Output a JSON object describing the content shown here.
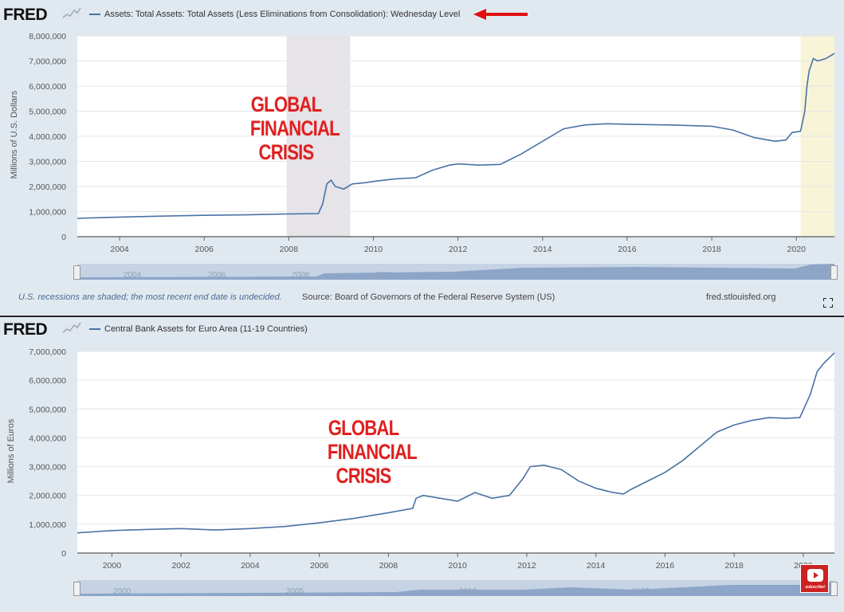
{
  "chart1": {
    "logo": "FRED",
    "legend": "Assets: Total Assets: Total Assets (Less Eliminations from Consolidation): Wednesday Level",
    "ylabel": "Millions of U.S. Dollars",
    "annotation": [
      "GLOBAL",
      "FINANCIAL",
      "CRISIS"
    ],
    "footer_note": "U.S. recessions are shaded; the most recent end date is undecided.",
    "source": "Source: Board of Governors of the Federal Reserve System (US)",
    "site": "fred.stlouisfed.org",
    "navigator_labels": [
      "2004",
      "2006",
      "2008",
      "2010",
      "2012"
    ],
    "colors": {
      "line": "#4a72a5",
      "recession": "#e6e3e9",
      "recent": "#f7f4d8",
      "arrow": "#e01010",
      "annotation": "#e02020"
    }
  },
  "chart2": {
    "logo": "FRED",
    "legend": "Central Bank Assets for Euro Area (11-19 Countries)",
    "ylabel": "Millions of Euros",
    "annotation": [
      "GLOBAL",
      "FINANCIAL",
      "CRISIS"
    ],
    "navigator_labels": [
      "2000",
      "2005",
      "2010",
      "2015"
    ],
    "subscribe": "subscribe!",
    "subscribe_icon": "youtube-icon"
  },
  "chart_data": [
    {
      "type": "line",
      "title": "Assets: Total Assets: Total Assets (Less Eliminations from Consolidation): Wednesday Level",
      "xlabel": "",
      "ylabel": "Millions of U.S. Dollars",
      "xlim": [
        2003.0,
        2020.9
      ],
      "ylim": [
        0,
        8000000
      ],
      "xticks": [
        2004,
        2006,
        2008,
        2010,
        2012,
        2014,
        2016,
        2018,
        2020
      ],
      "yticks": [
        0,
        1000000,
        2000000,
        3000000,
        4000000,
        5000000,
        6000000,
        7000000,
        8000000
      ],
      "ytick_labels": [
        "0",
        "1,000,000",
        "2,000,000",
        "3,000,000",
        "4,000,000",
        "5,000,000",
        "6,000,000",
        "7,000,000",
        "8,000,000"
      ],
      "shaded_regions": [
        {
          "from": 2007.95,
          "to": 2009.45,
          "kind": "recession"
        },
        {
          "from": 2020.1,
          "to": 2020.9,
          "kind": "recession"
        }
      ],
      "series": [
        {
          "x": [
            2003.0,
            2004.0,
            2005.0,
            2006.0,
            2007.0,
            2007.9,
            2008.7,
            2008.8,
            2008.9,
            2009.0,
            2009.1,
            2009.3,
            2009.5,
            2009.8,
            2010.0,
            2010.5,
            2011.0,
            2011.4,
            2011.8,
            2012.0,
            2012.5,
            2013.0,
            2013.5,
            2014.0,
            2014.5,
            2015.0,
            2015.5,
            2016.0,
            2017.0,
            2018.0,
            2018.5,
            2019.0,
            2019.5,
            2019.75,
            2019.9,
            2020.1,
            2020.2,
            2020.25,
            2020.3,
            2020.4,
            2020.5,
            2020.7,
            2020.9
          ],
          "values": [
            730000,
            780000,
            820000,
            850000,
            870000,
            900000,
            920000,
            1300000,
            2100000,
            2250000,
            2000000,
            1900000,
            2100000,
            2150000,
            2200000,
            2300000,
            2350000,
            2650000,
            2850000,
            2900000,
            2850000,
            2880000,
            3300000,
            3800000,
            4300000,
            4450000,
            4500000,
            4480000,
            4450000,
            4400000,
            4250000,
            3950000,
            3800000,
            3850000,
            4150000,
            4200000,
            5000000,
            6000000,
            6600000,
            7100000,
            7000000,
            7100000,
            7300000
          ]
        }
      ]
    },
    {
      "type": "line",
      "title": "Central Bank Assets for Euro Area (11-19 Countries)",
      "xlabel": "",
      "ylabel": "Millions of Euros",
      "xlim": [
        1999.0,
        2020.9
      ],
      "ylim": [
        0,
        7000000
      ],
      "xticks": [
        2000,
        2002,
        2004,
        2006,
        2008,
        2010,
        2012,
        2014,
        2016,
        2018,
        2020
      ],
      "yticks": [
        0,
        1000000,
        2000000,
        3000000,
        4000000,
        5000000,
        6000000,
        7000000
      ],
      "ytick_labels": [
        "0",
        "1,000,000",
        "2,000,000",
        "3,000,000",
        "4,000,000",
        "5,000,000",
        "6,000,000",
        "7,000,000"
      ],
      "series": [
        {
          "x": [
            1999.0,
            2000.0,
            2001.0,
            2002.0,
            2003.0,
            2004.0,
            2005.0,
            2006.0,
            2007.0,
            2008.0,
            2008.7,
            2008.8,
            2009.0,
            2009.5,
            2010.0,
            2010.5,
            2011.0,
            2011.5,
            2011.9,
            2012.1,
            2012.5,
            2013.0,
            2013.5,
            2014.0,
            2014.5,
            2014.8,
            2015.0,
            2015.5,
            2016.0,
            2016.5,
            2017.0,
            2017.5,
            2018.0,
            2018.5,
            2019.0,
            2019.5,
            2019.9,
            2020.2,
            2020.4,
            2020.6,
            2020.9
          ],
          "values": [
            700000,
            780000,
            820000,
            850000,
            800000,
            850000,
            920000,
            1050000,
            1200000,
            1400000,
            1550000,
            1900000,
            2000000,
            1900000,
            1800000,
            2100000,
            1900000,
            2000000,
            2600000,
            3000000,
            3050000,
            2900000,
            2500000,
            2250000,
            2100000,
            2050000,
            2200000,
            2500000,
            2800000,
            3200000,
            3700000,
            4200000,
            4450000,
            4600000,
            4700000,
            4680000,
            4700000,
            5500000,
            6300000,
            6600000,
            6950000
          ]
        }
      ]
    }
  ]
}
